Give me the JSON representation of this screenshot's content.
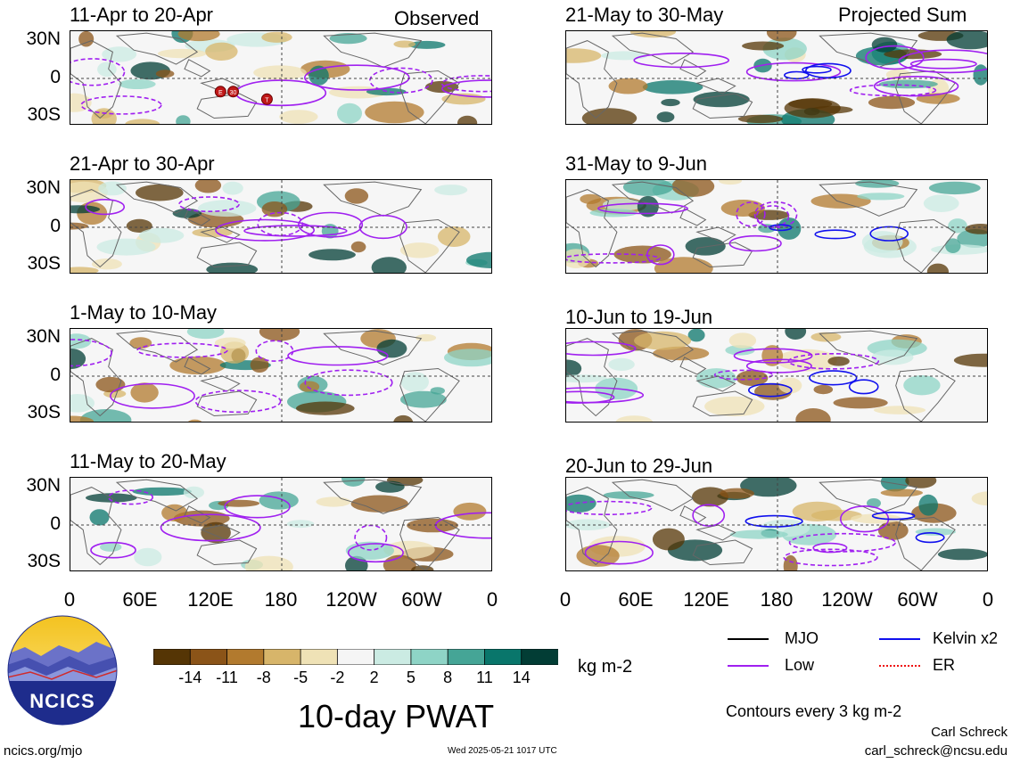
{
  "chart_data": {
    "type": "heatmap",
    "title": "10-day PWAT",
    "units": "kg m-2",
    "contour_note": "Contours every 3 kg m-2",
    "y_ticks": [
      "30N",
      "0",
      "30S"
    ],
    "x_ticks": [
      "0",
      "60E",
      "120E",
      "180",
      "120W",
      "60W",
      "0"
    ],
    "colorbar": {
      "ticks": [
        "-14",
        "-11",
        "-8",
        "-5",
        "-2",
        "2",
        "5",
        "8",
        "11",
        "14"
      ],
      "colors": [
        "#553505",
        "#8b5418",
        "#b27a2e",
        "#d7b56a",
        "#efe2b6",
        "#f5f5f5",
        "#cbebe3",
        "#8ed4c6",
        "#45a596",
        "#09766b",
        "#023d35"
      ]
    },
    "columns": [
      {
        "tag": "Observed",
        "panels": [
          {
            "title": "11-Apr to 20-Apr",
            "markers": [
              "E",
              "30",
              "T"
            ]
          },
          {
            "title": "21-Apr to 30-Apr"
          },
          {
            "title": "1-May to 10-May"
          },
          {
            "title": "11-May to 20-May"
          }
        ]
      },
      {
        "tag": "Projected Sum",
        "panels": [
          {
            "title": "21-May to 30-May"
          },
          {
            "title": "31-May to 9-Jun"
          },
          {
            "title": "10-Jun to 19-Jun"
          },
          {
            "title": "20-Jun to 29-Jun"
          }
        ]
      }
    ],
    "legend": [
      {
        "name": "MJO",
        "color": "#000000"
      },
      {
        "name": "Kelvin x2",
        "color": "#1010ee"
      },
      {
        "name": "Low",
        "color": "#a020f0"
      },
      {
        "name": "ER",
        "color": "#ee1010"
      }
    ]
  },
  "footer": {
    "logo_text": "NCICS",
    "url": "ncics.org/mjo",
    "timestamp": "Wed 2025-05-21 1017 UTC",
    "author": "Carl Schreck",
    "email": "carl_schreck@ncsu.edu"
  }
}
